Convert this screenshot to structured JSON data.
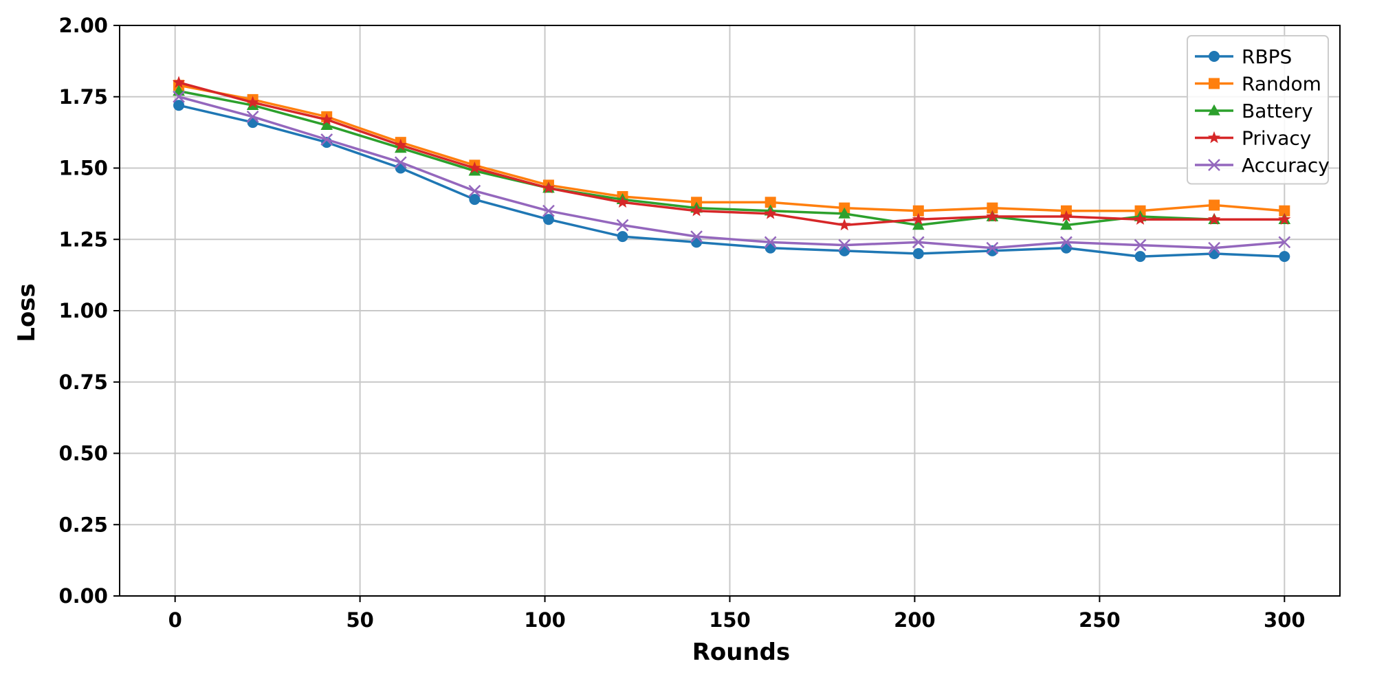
{
  "chart_data": {
    "type": "line",
    "title": "",
    "xlabel": "Rounds",
    "ylabel": "Loss",
    "xlim": [
      -15,
      315
    ],
    "ylim": [
      0,
      2.0
    ],
    "xticks": [
      0,
      50,
      100,
      150,
      200,
      250,
      300
    ],
    "xtick_labels": [
      "0",
      "50",
      "100",
      "150",
      "200",
      "250",
      "300"
    ],
    "yticks": [
      0,
      0.25,
      0.5,
      0.75,
      1.0,
      1.25,
      1.5,
      1.75,
      2.0
    ],
    "ytick_labels": [
      "0.00",
      "0.25",
      "0.50",
      "0.75",
      "1.00",
      "1.25",
      "1.50",
      "1.75",
      "2.00"
    ],
    "grid": true,
    "legend_position": "top-right",
    "series": [
      {
        "name": "RBPS",
        "color": "#1f77b4",
        "marker": "circle",
        "x": [
          1,
          21,
          41,
          61,
          81,
          101,
          121,
          141,
          161,
          181,
          201,
          221,
          241,
          261,
          281,
          300
        ],
        "y": [
          1.72,
          1.66,
          1.59,
          1.5,
          1.39,
          1.32,
          1.26,
          1.24,
          1.22,
          1.21,
          1.2,
          1.21,
          1.22,
          1.19,
          1.2,
          1.19
        ]
      },
      {
        "name": "Random",
        "color": "#ff7f0e",
        "marker": "square",
        "x": [
          1,
          21,
          41,
          61,
          81,
          101,
          121,
          141,
          161,
          181,
          201,
          221,
          241,
          261,
          281,
          300
        ],
        "y": [
          1.79,
          1.74,
          1.68,
          1.59,
          1.51,
          1.44,
          1.4,
          1.38,
          1.38,
          1.36,
          1.35,
          1.36,
          1.35,
          1.35,
          1.37,
          1.35
        ]
      },
      {
        "name": "Battery",
        "color": "#2ca02c",
        "marker": "triangle",
        "x": [
          1,
          21,
          41,
          61,
          81,
          101,
          121,
          141,
          161,
          181,
          201,
          221,
          241,
          261,
          281,
          300
        ],
        "y": [
          1.77,
          1.72,
          1.65,
          1.57,
          1.49,
          1.43,
          1.39,
          1.36,
          1.35,
          1.34,
          1.3,
          1.33,
          1.3,
          1.33,
          1.32,
          1.32
        ]
      },
      {
        "name": "Privacy",
        "color": "#d62728",
        "marker": "star",
        "x": [
          1,
          21,
          41,
          61,
          81,
          101,
          121,
          141,
          161,
          181,
          201,
          221,
          241,
          261,
          281,
          300
        ],
        "y": [
          1.8,
          1.73,
          1.67,
          1.58,
          1.5,
          1.43,
          1.38,
          1.35,
          1.34,
          1.3,
          1.32,
          1.33,
          1.33,
          1.32,
          1.32,
          1.32
        ]
      },
      {
        "name": "Accuracy",
        "color": "#9467bd",
        "marker": "x",
        "x": [
          1,
          21,
          41,
          61,
          81,
          101,
          121,
          141,
          161,
          181,
          201,
          221,
          241,
          261,
          281,
          300
        ],
        "y": [
          1.75,
          1.68,
          1.6,
          1.52,
          1.42,
          1.35,
          1.3,
          1.26,
          1.24,
          1.23,
          1.24,
          1.22,
          1.24,
          1.23,
          1.22,
          1.24
        ]
      }
    ]
  }
}
